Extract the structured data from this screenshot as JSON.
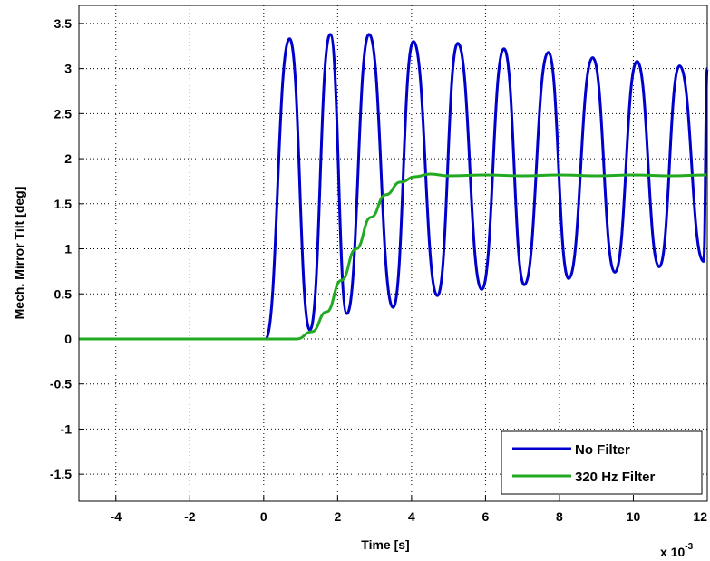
{
  "chart_data": {
    "type": "line",
    "title": "",
    "xlabel": "Time [s]",
    "ylabel": "Mech. Mirror Tilt [deg]",
    "x_multiplier_label": "x 10",
    "x_multiplier_exponent": "-3",
    "xlim": [
      -5,
      12
    ],
    "ylim": [
      -1.8,
      3.7
    ],
    "xticks": [
      -4,
      -2,
      0,
      2,
      4,
      6,
      8,
      10,
      12
    ],
    "xtick_labels": [
      "-4",
      "-2",
      "0",
      "2",
      "4",
      "6",
      "8",
      "10",
      "12"
    ],
    "yticks": [
      3.5,
      3,
      2.5,
      2,
      1.5,
      1,
      0.5,
      0,
      -0.5,
      -1,
      -1.5
    ],
    "ytick_labels": [
      "3.5",
      "3",
      "2.5",
      "2",
      "1.5",
      "1",
      "0.5",
      "0",
      "-0.5",
      "-1",
      "-1.5"
    ],
    "grid": true,
    "legend_position": "bottom-right",
    "series": [
      {
        "name": "No Filter",
        "color": "#0000cc",
        "x": [
          -5,
          0.05,
          0.7,
          1.25,
          1.8,
          2.25,
          2.85,
          3.5,
          4.05,
          4.7,
          5.25,
          5.9,
          6.5,
          7.05,
          7.7,
          8.25,
          8.9,
          9.5,
          10.1,
          10.7,
          11.25,
          11.9,
          12
        ],
        "y": [
          0,
          0,
          3.33,
          0.1,
          3.38,
          0.28,
          3.38,
          0.35,
          3.3,
          0.48,
          3.28,
          0.55,
          3.22,
          0.6,
          3.18,
          0.67,
          3.12,
          0.74,
          3.08,
          0.8,
          3.03,
          0.86,
          3.0
        ]
      },
      {
        "name": "320 Hz Filter",
        "color": "#22aa22",
        "x": [
          -5,
          0.9,
          1.3,
          1.7,
          2.1,
          2.5,
          2.9,
          3.3,
          3.7,
          4.1,
          4.5,
          5,
          6,
          7,
          8,
          9,
          10,
          11,
          12
        ],
        "y": [
          0,
          0,
          0.08,
          0.3,
          0.65,
          1.0,
          1.35,
          1.6,
          1.74,
          1.8,
          1.83,
          1.81,
          1.82,
          1.81,
          1.82,
          1.81,
          1.82,
          1.81,
          1.82
        ]
      }
    ]
  }
}
